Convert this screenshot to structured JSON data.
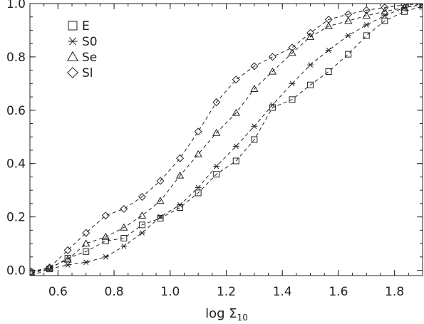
{
  "chart_data": {
    "type": "line",
    "xlabel_main": "log Σ",
    "xlabel_sub": "10",
    "ylabel": "",
    "xlim": [
      0.5,
      1.9
    ],
    "ylim": [
      -0.02,
      1.0
    ],
    "x_ticks": [
      "0.6",
      "0.8",
      "1.0",
      "1.2",
      "1.4",
      "1.6",
      "1.8"
    ],
    "x_tick_values": [
      0.6,
      0.8,
      1.0,
      1.2,
      1.4,
      1.6,
      1.8
    ],
    "y_ticks": [
      "0.0",
      "0.2",
      "0.4",
      "0.6",
      "0.8",
      "1.0"
    ],
    "y_tick_values": [
      0.0,
      0.2,
      0.4,
      0.6,
      0.8,
      1.0
    ],
    "grid": false,
    "legend_position": "top-left",
    "line_style": "dashed",
    "series": [
      {
        "name": "E",
        "marker": "square",
        "x": [
          0.505,
          0.57,
          0.635,
          0.7,
          0.77,
          0.835,
          0.9,
          0.965,
          1.035,
          1.1,
          1.165,
          1.235,
          1.3,
          1.365,
          1.435,
          1.5,
          1.565,
          1.635,
          1.7,
          1.765,
          1.835,
          1.9
        ],
        "y": [
          -0.01,
          0.005,
          0.045,
          0.07,
          0.11,
          0.12,
          0.17,
          0.195,
          0.235,
          0.29,
          0.36,
          0.41,
          0.49,
          0.61,
          0.64,
          0.695,
          0.745,
          0.81,
          0.88,
          0.935,
          0.97,
          0.99
        ]
      },
      {
        "name": "S0",
        "marker": "asterisk",
        "x": [
          0.505,
          0.57,
          0.635,
          0.7,
          0.77,
          0.835,
          0.9,
          0.965,
          1.035,
          1.1,
          1.165,
          1.235,
          1.3,
          1.365,
          1.435,
          1.5,
          1.565,
          1.635,
          1.7,
          1.765,
          1.835,
          1.9
        ],
        "y": [
          -0.02,
          0.005,
          0.02,
          0.03,
          0.05,
          0.09,
          0.14,
          0.2,
          0.245,
          0.31,
          0.39,
          0.465,
          0.54,
          0.62,
          0.7,
          0.77,
          0.825,
          0.88,
          0.92,
          0.955,
          0.985,
          1.0
        ]
      },
      {
        "name": "Se",
        "marker": "triangle",
        "x": [
          0.505,
          0.57,
          0.635,
          0.7,
          0.77,
          0.835,
          0.9,
          0.965,
          1.035,
          1.1,
          1.165,
          1.235,
          1.3,
          1.365,
          1.435,
          1.5,
          1.565,
          1.635,
          1.7,
          1.765,
          1.835,
          1.9
        ],
        "y": [
          -0.01,
          0.01,
          0.04,
          0.1,
          0.125,
          0.16,
          0.205,
          0.26,
          0.355,
          0.435,
          0.515,
          0.59,
          0.68,
          0.745,
          0.815,
          0.875,
          0.915,
          0.935,
          0.955,
          0.97,
          0.985,
          0.995
        ]
      },
      {
        "name": "Sl",
        "marker": "diamond",
        "x": [
          0.505,
          0.57,
          0.635,
          0.7,
          0.77,
          0.835,
          0.9,
          0.965,
          1.035,
          1.1,
          1.165,
          1.235,
          1.3,
          1.365,
          1.435,
          1.5,
          1.565,
          1.635,
          1.7,
          1.765,
          1.835,
          1.9
        ],
        "y": [
          -0.005,
          0.01,
          0.075,
          0.14,
          0.205,
          0.23,
          0.275,
          0.335,
          0.42,
          0.52,
          0.63,
          0.715,
          0.765,
          0.8,
          0.835,
          0.89,
          0.94,
          0.96,
          0.975,
          0.985,
          0.995,
          1.0
        ]
      }
    ]
  }
}
